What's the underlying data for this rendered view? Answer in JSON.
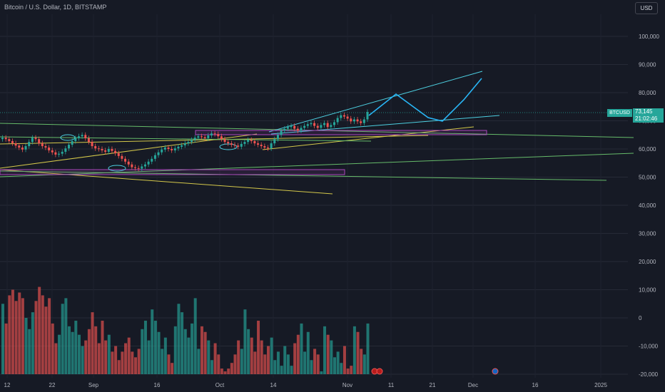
{
  "header": {
    "title": "Bitcoin / U.S. Dollar, 1D, BITSTAMP",
    "currency_button": "USD"
  },
  "price_tag": {
    "symbol": "BTCUSD",
    "price": "73,145",
    "countdown": "21:02:46"
  },
  "chart_data": {
    "type": "candlestick",
    "price_axis": {
      "labels": [
        "100,000",
        "90,000",
        "80,000",
        "70,000",
        "60,000",
        "50,000",
        "40,000",
        "30,000",
        "20,000",
        "10,000",
        "0",
        "-10,000",
        "-20,000"
      ],
      "ylim": [
        -20000,
        100000
      ]
    },
    "time_axis": {
      "labels": [
        "12",
        "22",
        "Sep",
        "16",
        "Oct",
        "14",
        "Nov",
        "11",
        "21",
        "Dec",
        "16",
        "2025"
      ]
    },
    "colors": {
      "up": "#26a69a",
      "down": "#ef5350",
      "background": "#161a25",
      "projection": "#29b6f6"
    },
    "series": [
      {
        "name": "price",
        "close": [
          64000,
          63500,
          62800,
          62000,
          61200,
          60500,
          59800,
          61000,
          62500,
          64000,
          63500,
          62000,
          61000,
          60500,
          59500,
          58800,
          58000,
          58300,
          59000,
          60200,
          61500,
          62800,
          63800,
          64500,
          65000,
          63800,
          62500,
          61000,
          60200,
          60000,
          59500,
          59000,
          60000,
          59300,
          58500,
          57500,
          56500,
          55500,
          54500,
          53500,
          53200,
          53000,
          53800,
          54500,
          55500,
          56500,
          57800,
          58800,
          59800,
          60500,
          60000,
          59500,
          60200,
          60800,
          61300,
          62000,
          62500,
          63200,
          64000,
          64500,
          64200,
          63800,
          64800,
          65500,
          65300,
          64500,
          63500,
          62500,
          62000,
          61500,
          61200,
          60800,
          61800,
          62500,
          63200,
          62800,
          62000,
          61500,
          61000,
          60500,
          60200,
          62000,
          63500,
          65000,
          66500,
          67200,
          67800,
          68200,
          67200,
          66500,
          67500,
          68200,
          68800,
          69200,
          68200,
          67500,
          68500,
          69200,
          67800,
          68500,
          69500,
          71000,
          72000,
          71500,
          70800,
          69800,
          70500,
          69800,
          69200,
          70500,
          73145
        ]
      },
      {
        "name": "volume",
        "type": "bar",
        "values": [
          5000,
          -2000,
          8000,
          10000,
          6000,
          9000,
          7000,
          0,
          -4000,
          2000,
          6000,
          11000,
          8000,
          4000,
          7000,
          -2000,
          -9000,
          -6000,
          5000,
          7000,
          -3000,
          -5000,
          -1000,
          -6000,
          -10000,
          -8000,
          -4000,
          2000,
          -3000,
          -9000,
          -1000,
          -8000,
          -6000,
          -12000,
          -10000,
          -15000,
          -12000,
          -9000,
          -7000,
          -12000,
          -14000,
          -11000,
          -4000,
          -1000,
          -8000,
          3000,
          -1000,
          -5000,
          -11000,
          -7000,
          -13000,
          -16000,
          -3000,
          5000,
          2000,
          -4000,
          -7000,
          -2000,
          7000,
          -11000,
          -3000,
          -5000,
          -8000,
          -15000,
          -9000,
          -13000,
          -18000,
          -19000,
          -18000,
          -16000,
          -13000,
          -8000,
          -11000,
          3000,
          -4000,
          -7000,
          -12000,
          -1000,
          -8000,
          -13000,
          -10000,
          -7000,
          -15000,
          -12000,
          -17000,
          -10000,
          -13000,
          -17000,
          -9000,
          -6000,
          -2000,
          -12000,
          -5000,
          -15000,
          -11000,
          -13000,
          -19000,
          -3000,
          -6000,
          -8000,
          -14000,
          -12000,
          -16000,
          -10000,
          -18000,
          -17000,
          -3000,
          -5000,
          -11000,
          -13000,
          -2000
        ]
      }
    ]
  }
}
